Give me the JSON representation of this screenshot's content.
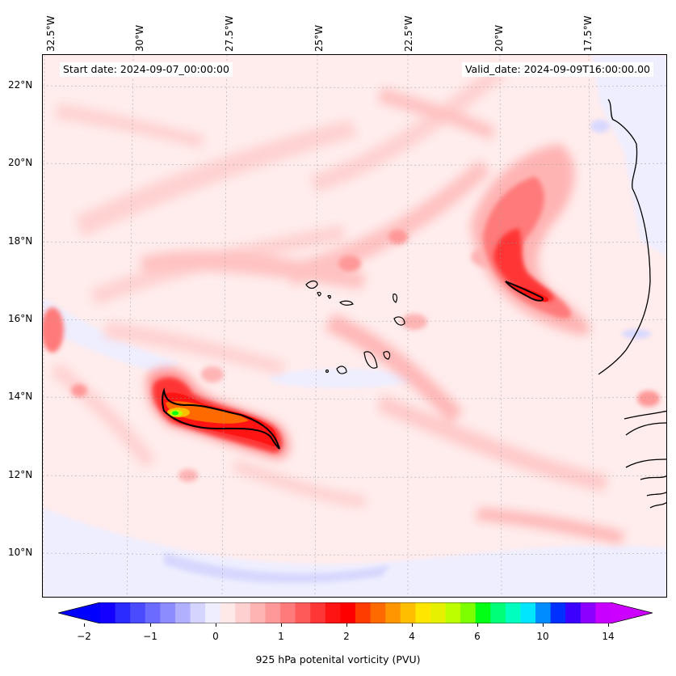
{
  "header": {
    "start_date": "Start date: 2024-09-07_00:00:00",
    "valid_date": "Valid_date: 2024-09-09T16:00:00.00"
  },
  "axes": {
    "longitude_labels": [
      "32.5°W",
      "30°W",
      "27.5°W",
      "25°W",
      "22.5°W",
      "20°W",
      "17.5°W"
    ],
    "latitude_labels": [
      "22°N",
      "20°N",
      "18°N",
      "16°N",
      "14°N",
      "12°N",
      "10°N"
    ]
  },
  "colorbar": {
    "label": "925 hPa potenital vorticity (PVU)",
    "tick_labels": [
      "−2",
      "−1",
      "0",
      "1",
      "2",
      "4",
      "6",
      "10",
      "14"
    ],
    "colors": [
      "#1400ff",
      "#2b2bff",
      "#4a4aff",
      "#6b6bff",
      "#8c8cff",
      "#b0b0ff",
      "#d4d4ff",
      "#eeeeff",
      "#ffe8e8",
      "#ffd0d0",
      "#ffb4b4",
      "#ff9898",
      "#ff7a7a",
      "#ff5a5a",
      "#ff3636",
      "#ff1414",
      "#ff0000",
      "#ff3c00",
      "#ff6a00",
      "#ff9600",
      "#ffbe00",
      "#ffe600",
      "#e6f000",
      "#beff00",
      "#7dff00",
      "#00ff14",
      "#00ff78",
      "#00ffbe",
      "#00e6ff",
      "#008cff",
      "#0030ff",
      "#3c00ff",
      "#8c00ff",
      "#c800ff"
    ],
    "under_color": "#0000ff",
    "over_color": "#cc00ff"
  },
  "colors": {
    "background_field": "#ffecec",
    "coast": "#000000"
  }
}
